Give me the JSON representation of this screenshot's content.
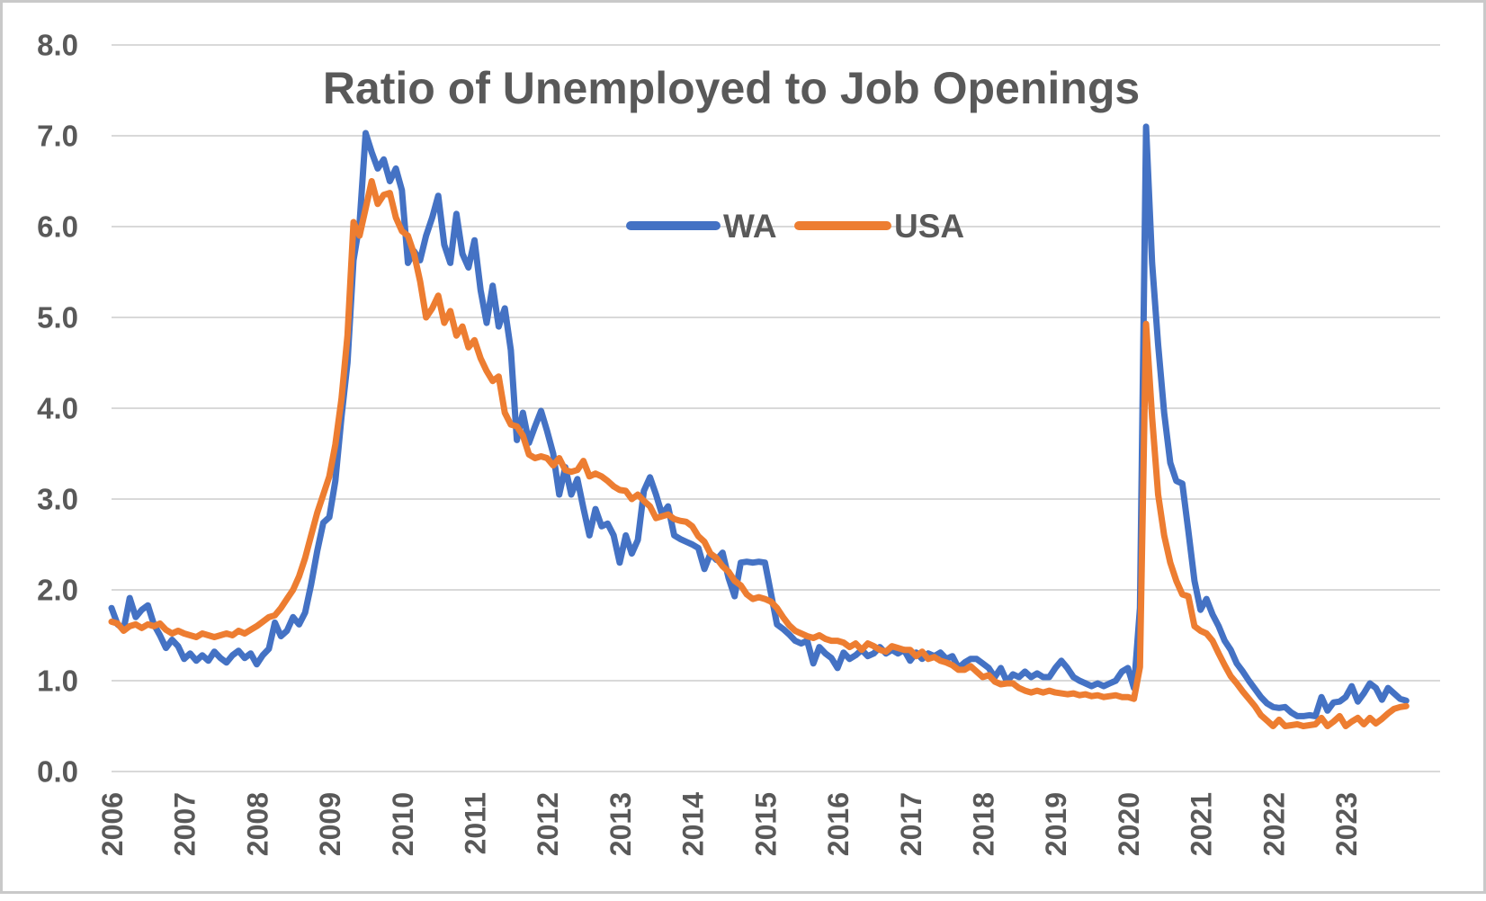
{
  "colors": {
    "wa_line": "#4472C4",
    "usa_line": "#ED7D31",
    "text": "#595959",
    "gridline": "#D9D9D9",
    "background": "#FFFFFF",
    "frame_border": "#C9C9C9"
  },
  "legend": {
    "wa_label": "WA",
    "usa_label": "USA"
  },
  "chart_data": {
    "type": "line",
    "title": "Ratio of Unemployed to Job Openings",
    "xlabel": "",
    "ylabel": "",
    "grid": "horizontal",
    "legend_position": "top-center-inside",
    "x_axis": {
      "start": "2006-01",
      "frequency": "monthly",
      "year_labels": [
        "2006",
        "2007",
        "2008",
        "2009",
        "2010",
        "2011",
        "2012",
        "2013",
        "2014",
        "2015",
        "2016",
        "2017",
        "2018",
        "2019",
        "2020",
        "2021",
        "2022",
        "2023"
      ],
      "label_rotation_deg": 90
    },
    "y_axis": {
      "min": 0,
      "max": 8,
      "tick_step": 1,
      "tick_labels": [
        "0.0",
        "1.0",
        "2.0",
        "3.0",
        "4.0",
        "5.0",
        "6.0",
        "7.0",
        "8.0"
      ]
    },
    "series": [
      {
        "name": "WA",
        "color": "#4472C4",
        "values": [
          1.8,
          1.62,
          1.57,
          1.91,
          1.7,
          1.78,
          1.83,
          1.62,
          1.5,
          1.36,
          1.45,
          1.38,
          1.24,
          1.3,
          1.22,
          1.28,
          1.22,
          1.32,
          1.25,
          1.2,
          1.28,
          1.33,
          1.25,
          1.3,
          1.18,
          1.28,
          1.35,
          1.64,
          1.49,
          1.55,
          1.7,
          1.62,
          1.75,
          2.06,
          2.43,
          2.74,
          2.8,
          3.2,
          3.9,
          4.5,
          5.63,
          6.03,
          7.03,
          6.82,
          6.64,
          6.74,
          6.5,
          6.64,
          6.4,
          5.6,
          5.73,
          5.63,
          5.9,
          6.1,
          6.34,
          5.8,
          5.6,
          6.14,
          5.7,
          5.55,
          5.85,
          5.3,
          4.94,
          5.35,
          4.9,
          5.1,
          4.64,
          3.65,
          3.95,
          3.62,
          3.8,
          3.97,
          3.75,
          3.5,
          3.05,
          3.35,
          3.05,
          3.22,
          2.9,
          2.6,
          2.89,
          2.7,
          2.73,
          2.6,
          2.3,
          2.6,
          2.4,
          2.55,
          3.09,
          3.24,
          3.05,
          2.83,
          2.92,
          2.6,
          2.56,
          2.53,
          2.5,
          2.46,
          2.23,
          2.4,
          2.33,
          2.41,
          2.13,
          1.93,
          2.3,
          2.31,
          2.3,
          2.31,
          2.3,
          1.96,
          1.62,
          1.57,
          1.51,
          1.44,
          1.41,
          1.44,
          1.19,
          1.37,
          1.3,
          1.25,
          1.14,
          1.31,
          1.24,
          1.28,
          1.34,
          1.27,
          1.3,
          1.37,
          1.3,
          1.34,
          1.3,
          1.34,
          1.22,
          1.31,
          1.24,
          1.3,
          1.27,
          1.31,
          1.24,
          1.27,
          1.14,
          1.2,
          1.24,
          1.24,
          1.19,
          1.14,
          1.04,
          1.14,
          0.99,
          1.07,
          1.04,
          1.1,
          1.04,
          1.08,
          1.04,
          1.04,
          1.14,
          1.22,
          1.14,
          1.04,
          1.0,
          0.97,
          0.94,
          0.97,
          0.94,
          0.97,
          1.0,
          1.1,
          1.14,
          0.92,
          1.8,
          7.1,
          5.6,
          4.7,
          3.95,
          3.4,
          3.2,
          3.17,
          2.65,
          2.1,
          1.78,
          1.9,
          1.73,
          1.6,
          1.44,
          1.34,
          1.19,
          1.1,
          1.0,
          0.91,
          0.82,
          0.75,
          0.71,
          0.7,
          0.71,
          0.65,
          0.61,
          0.61,
          0.62,
          0.61,
          0.82,
          0.67,
          0.76,
          0.77,
          0.82,
          0.94,
          0.77,
          0.86,
          0.97,
          0.92,
          0.79,
          0.92,
          0.86,
          0.8,
          0.78
        ]
      },
      {
        "name": "USA",
        "color": "#ED7D31",
        "values": [
          1.65,
          1.63,
          1.55,
          1.6,
          1.62,
          1.58,
          1.62,
          1.6,
          1.63,
          1.56,
          1.52,
          1.55,
          1.52,
          1.5,
          1.48,
          1.52,
          1.5,
          1.48,
          1.5,
          1.52,
          1.5,
          1.55,
          1.52,
          1.56,
          1.6,
          1.65,
          1.7,
          1.72,
          1.8,
          1.9,
          2.0,
          2.15,
          2.35,
          2.6,
          2.85,
          3.05,
          3.25,
          3.6,
          4.1,
          4.8,
          6.05,
          5.9,
          6.2,
          6.5,
          6.25,
          6.35,
          6.37,
          6.1,
          5.95,
          5.9,
          5.7,
          5.4,
          5.0,
          5.1,
          5.24,
          4.94,
          5.07,
          4.8,
          4.9,
          4.67,
          4.75,
          4.55,
          4.41,
          4.3,
          4.35,
          3.95,
          3.82,
          3.8,
          3.7,
          3.49,
          3.45,
          3.47,
          3.45,
          3.37,
          3.45,
          3.32,
          3.3,
          3.32,
          3.42,
          3.25,
          3.28,
          3.25,
          3.2,
          3.14,
          3.1,
          3.09,
          3.0,
          3.05,
          2.98,
          2.92,
          2.79,
          2.81,
          2.83,
          2.78,
          2.76,
          2.75,
          2.7,
          2.59,
          2.53,
          2.4,
          2.35,
          2.26,
          2.2,
          2.1,
          2.05,
          1.95,
          1.9,
          1.92,
          1.9,
          1.87,
          1.8,
          1.7,
          1.61,
          1.55,
          1.52,
          1.49,
          1.47,
          1.5,
          1.46,
          1.44,
          1.44,
          1.42,
          1.37,
          1.41,
          1.34,
          1.41,
          1.38,
          1.34,
          1.32,
          1.38,
          1.36,
          1.34,
          1.34,
          1.27,
          1.32,
          1.24,
          1.26,
          1.22,
          1.2,
          1.17,
          1.12,
          1.12,
          1.16,
          1.1,
          1.04,
          1.06,
          0.99,
          0.96,
          0.97,
          0.97,
          0.92,
          0.89,
          0.87,
          0.89,
          0.87,
          0.89,
          0.87,
          0.86,
          0.85,
          0.86,
          0.84,
          0.85,
          0.83,
          0.84,
          0.82,
          0.83,
          0.84,
          0.82,
          0.82,
          0.8,
          1.15,
          4.93,
          3.9,
          3.05,
          2.6,
          2.3,
          2.1,
          1.95,
          1.93,
          1.6,
          1.55,
          1.52,
          1.44,
          1.3,
          1.17,
          1.05,
          0.97,
          0.88,
          0.8,
          0.72,
          0.62,
          0.56,
          0.5,
          0.57,
          0.5,
          0.51,
          0.52,
          0.5,
          0.51,
          0.52,
          0.59,
          0.5,
          0.55,
          0.61,
          0.5,
          0.55,
          0.59,
          0.52,
          0.59,
          0.53,
          0.58,
          0.64,
          0.69,
          0.71,
          0.72
        ]
      }
    ]
  }
}
